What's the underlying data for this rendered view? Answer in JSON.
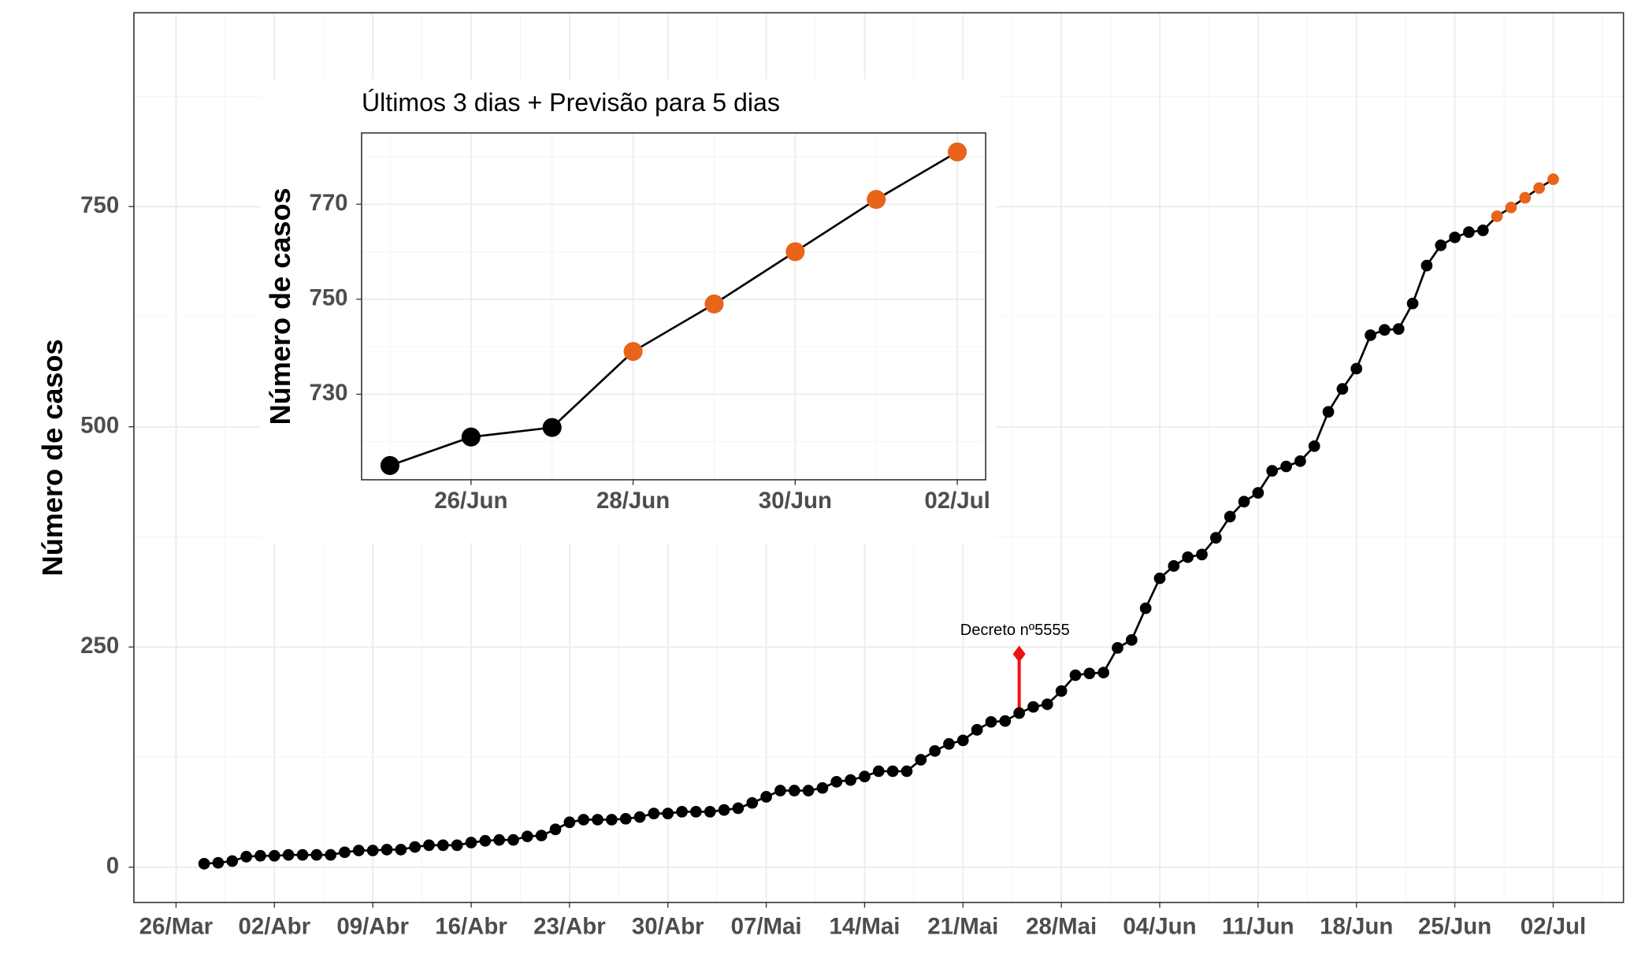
{
  "chart_data": [
    {
      "type": "line",
      "y_label": "Número de casos",
      "line_color": "#000000",
      "grid": true,
      "xlim": [
        "03-23",
        "07-07"
      ],
      "ylim": [
        -40,
        970
      ],
      "yticks": [
        0,
        250,
        500,
        750
      ],
      "xticks": [
        {
          "value": "03-26",
          "label": "26/Mar"
        },
        {
          "value": "04-02",
          "label": "02/Abr"
        },
        {
          "value": "04-09",
          "label": "09/Abr"
        },
        {
          "value": "04-16",
          "label": "16/Abr"
        },
        {
          "value": "04-23",
          "label": "23/Abr"
        },
        {
          "value": "04-30",
          "label": "30/Abr"
        },
        {
          "value": "05-07",
          "label": "07/Mai"
        },
        {
          "value": "05-14",
          "label": "14/Mai"
        },
        {
          "value": "05-21",
          "label": "21/Mai"
        },
        {
          "value": "05-28",
          "label": "28/Mai"
        },
        {
          "value": "06-04",
          "label": "04/Jun"
        },
        {
          "value": "06-11",
          "label": "11/Jun"
        },
        {
          "value": "06-18",
          "label": "18/Jun"
        },
        {
          "value": "06-25",
          "label": "25/Jun"
        },
        {
          "value": "07-02",
          "label": "02/Jul"
        }
      ],
      "series": [
        {
          "color": "#000000",
          "x": [
            "03-28",
            "03-29",
            "03-30",
            "03-31",
            "04-01",
            "04-02",
            "04-03",
            "04-04",
            "04-05",
            "04-06",
            "04-07",
            "04-08",
            "04-09",
            "04-10",
            "04-11",
            "04-12",
            "04-13",
            "04-14",
            "04-15",
            "04-16",
            "04-17",
            "04-18",
            "04-19",
            "04-20",
            "04-21",
            "04-22",
            "04-23",
            "04-24",
            "04-25",
            "04-26",
            "04-27",
            "04-28",
            "04-29",
            "04-30",
            "05-01",
            "05-02",
            "05-03",
            "05-04",
            "05-05",
            "05-06",
            "05-07",
            "05-08",
            "05-09",
            "05-10",
            "05-11",
            "05-12",
            "05-13",
            "05-14",
            "05-15",
            "05-16",
            "05-17",
            "05-18",
            "05-19",
            "05-20",
            "05-21",
            "05-22",
            "05-23",
            "05-24",
            "05-25",
            "05-26",
            "05-27",
            "05-28",
            "05-29",
            "05-30",
            "05-31",
            "06-01",
            "06-02",
            "06-03",
            "06-04",
            "06-05",
            "06-06",
            "06-07",
            "06-08",
            "06-09",
            "06-10",
            "06-11",
            "06-12",
            "06-13",
            "06-14",
            "06-15",
            "06-16",
            "06-17",
            "06-18",
            "06-19",
            "06-20",
            "06-21",
            "06-22",
            "06-23",
            "06-24",
            "06-25",
            "06-26",
            "06-27"
          ],
          "values": [
            4,
            5,
            7,
            12,
            13,
            13,
            14,
            14,
            14,
            14,
            17,
            19,
            19,
            20,
            20,
            23,
            25,
            25,
            25,
            28,
            30,
            31,
            31,
            35,
            36,
            43,
            51,
            54,
            54,
            54,
            55,
            57,
            61,
            61,
            63,
            63,
            63,
            65,
            67,
            73,
            80,
            87,
            87,
            87,
            90,
            97,
            99,
            103,
            109,
            109,
            109,
            122,
            132,
            140,
            144,
            156,
            165,
            166,
            175,
            182,
            185,
            200,
            218,
            220,
            221,
            249,
            258,
            294,
            328,
            342,
            352,
            355,
            374,
            398,
            415,
            425,
            450,
            455,
            461,
            478,
            517,
            543,
            566,
            604,
            610,
            611,
            640,
            683,
            706,
            715,
            721,
            723
          ]
        },
        {
          "color": "#e8641b",
          "x": [
            "06-28",
            "06-29",
            "06-30",
            "07-01",
            "07-02"
          ],
          "values": [
            739,
            749,
            760,
            771,
            781
          ]
        }
      ],
      "annotations": [
        {
          "text": "Decreto nº5555",
          "x": "05-25",
          "y": 242,
          "color": "#ee1111"
        }
      ]
    },
    {
      "type": "line",
      "title": "Últimos 3 dias + Previsão para 5 dias",
      "y_label": "Número de casos",
      "line_color": "#000000",
      "grid": true,
      "xlim": [
        "06-25",
        "07-02"
      ],
      "ylim": [
        712,
        785
      ],
      "yticks": [
        730,
        750,
        770
      ],
      "xticks": [
        {
          "value": "06-26",
          "label": "26/Jun"
        },
        {
          "value": "06-28",
          "label": "28/Jun"
        },
        {
          "value": "06-30",
          "label": "30/Jun"
        },
        {
          "value": "07-02",
          "label": "02/Jul"
        }
      ],
      "series": [
        {
          "color": "#000000",
          "x": [
            "06-25",
            "06-26",
            "06-27"
          ],
          "values": [
            715,
            721,
            723
          ]
        },
        {
          "color": "#e8641b",
          "x": [
            "06-28",
            "06-29",
            "06-30",
            "07-01",
            "07-02"
          ],
          "values": [
            739,
            749,
            760,
            771,
            781
          ]
        }
      ]
    }
  ]
}
